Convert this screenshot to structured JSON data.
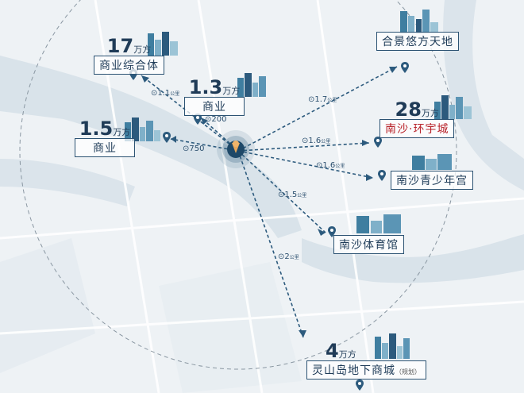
{
  "colors": {
    "accent": "#2c5a7d",
    "red": "#b8232a",
    "water": "#d9e3ea",
    "land": "#eef2f5"
  },
  "center_icon": "location-marker-icon",
  "destinations": [
    {
      "id": "hejing",
      "area": "",
      "unit": "",
      "name": "合景悠方天地",
      "distance": "1.7",
      "distance_unit": "公里",
      "red": false
    },
    {
      "id": "huanyu",
      "area": "28",
      "unit": "万方",
      "name": "南沙·环宇城",
      "distance": "1.6",
      "distance_unit": "公里",
      "red": true
    },
    {
      "id": "qingshaonian",
      "area": "",
      "unit": "",
      "name": "南沙青少年宫",
      "distance": "1.6",
      "distance_unit": "公里",
      "red": false
    },
    {
      "id": "tiyuguan",
      "area": "",
      "unit": "",
      "name": "南沙体育馆",
      "distance": "1.5",
      "distance_unit": "公里",
      "red": false
    },
    {
      "id": "lingshan",
      "area": "4",
      "unit": "万方",
      "name": "灵山岛地下商城",
      "note": "（规划）",
      "distance": "2",
      "distance_unit": "公里",
      "red": false
    },
    {
      "id": "zonghe",
      "area": "17",
      "unit": "万方",
      "name": "商业综合体",
      "distance": "1.1",
      "distance_unit": "公里",
      "red": false
    },
    {
      "id": "shangye13",
      "area": "1.3",
      "unit": "万方",
      "name": "商业",
      "distance": "200",
      "distance_unit": "米",
      "red": false
    },
    {
      "id": "shangye15",
      "area": "1.5",
      "unit": "万方",
      "name": "商业",
      "distance": "750",
      "distance_unit": "米",
      "red": false
    }
  ]
}
